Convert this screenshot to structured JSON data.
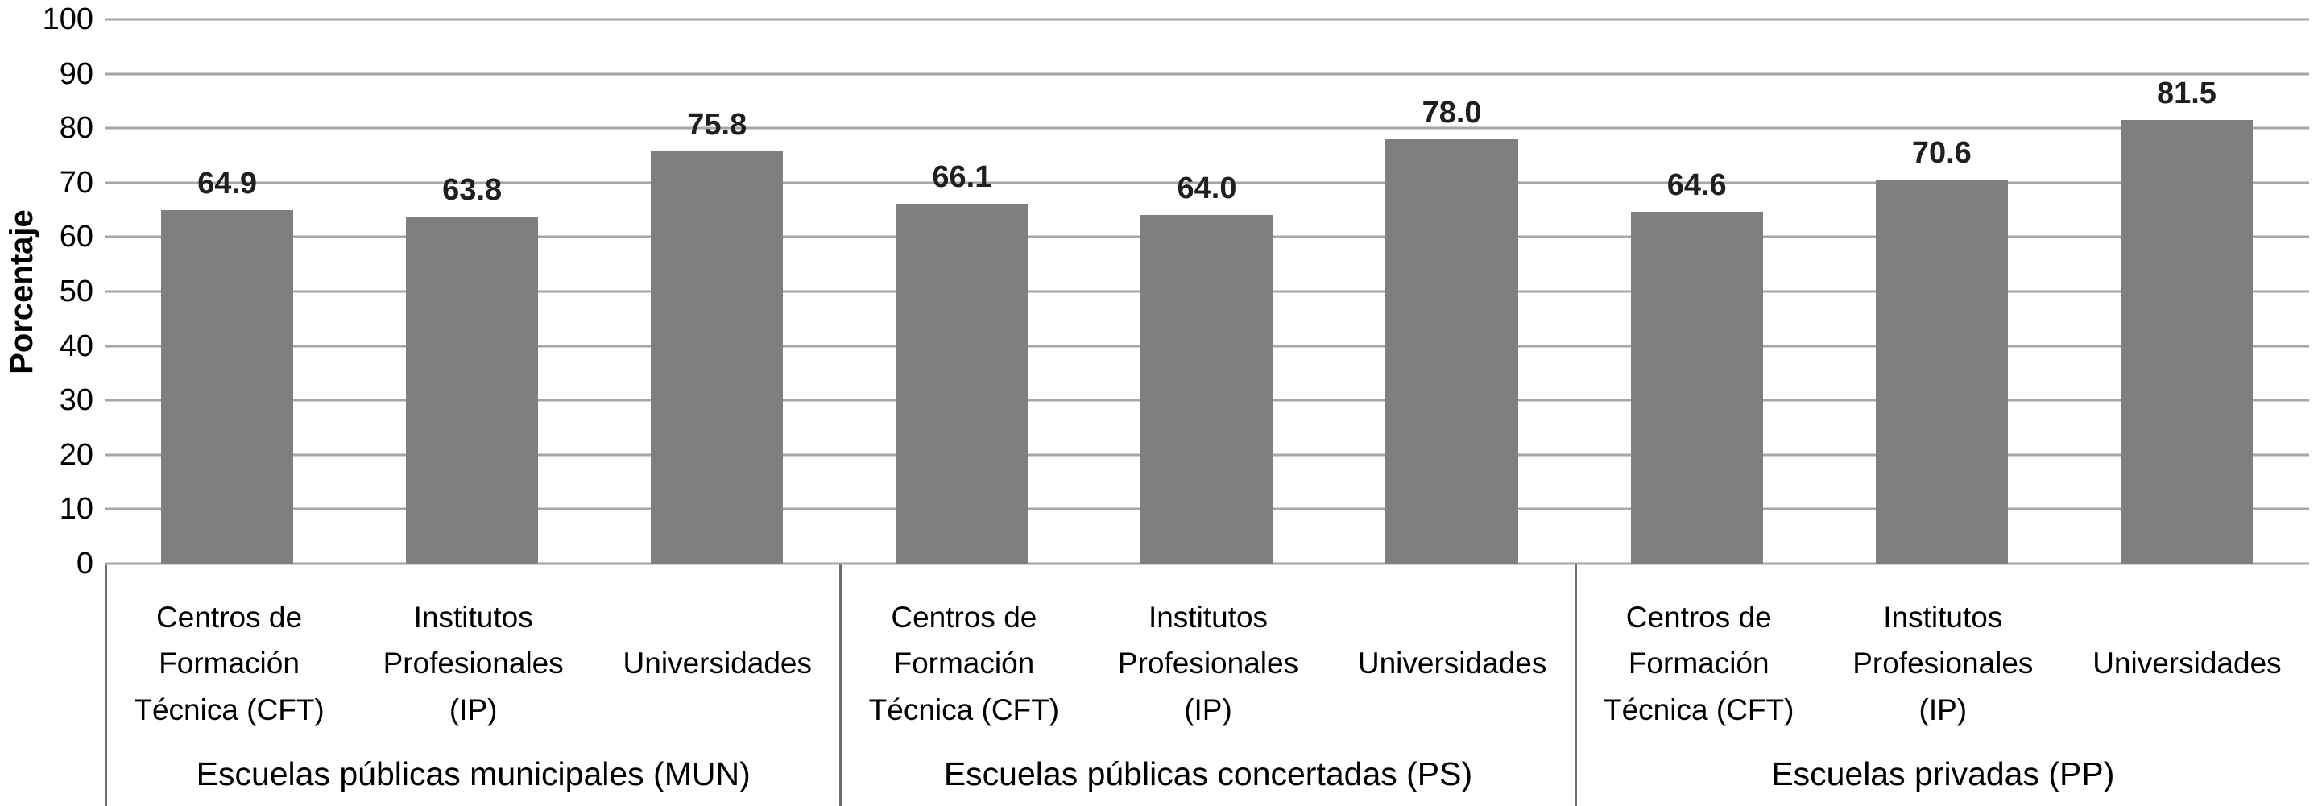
{
  "chart_data": {
    "type": "bar",
    "title": "",
    "ylabel": "Porcentaje",
    "ylim": [
      0,
      100
    ],
    "ytick_interval": 10,
    "ytick_labels": [
      "0",
      "10",
      "20",
      "30",
      "40",
      "50",
      "60",
      "70",
      "80",
      "90",
      "100"
    ],
    "grid": "horizontal",
    "legend": "none",
    "bar_color": "#7f7f7f",
    "groups": [
      {
        "label": "Escuelas públicas municipales (MUN)",
        "bars": [
          {
            "category_lines": [
              "Centros de",
              "Formación",
              "Técnica (CFT)"
            ],
            "value": 64.9,
            "display": "64.9"
          },
          {
            "category_lines": [
              "Institutos",
              "Profesionales",
              "(IP)"
            ],
            "value": 63.8,
            "display": "63.8"
          },
          {
            "category_lines": [
              "Universidades"
            ],
            "value": 75.8,
            "display": "75.8"
          }
        ]
      },
      {
        "label": "Escuelas públicas concertadas (PS)",
        "bars": [
          {
            "category_lines": [
              "Centros de",
              "Formación",
              "Técnica (CFT)"
            ],
            "value": 66.1,
            "display": "66.1"
          },
          {
            "category_lines": [
              "Institutos",
              "Profesionales",
              "(IP)"
            ],
            "value": 64.0,
            "display": "64.0"
          },
          {
            "category_lines": [
              "Universidades"
            ],
            "value": 78.0,
            "display": "78.0"
          }
        ]
      },
      {
        "label": "Escuelas privadas (PP)",
        "bars": [
          {
            "category_lines": [
              "Centros de",
              "Formación",
              "Técnica (CFT)"
            ],
            "value": 64.6,
            "display": "64.6"
          },
          {
            "category_lines": [
              "Institutos",
              "Profesionales",
              "(IP)"
            ],
            "value": 70.6,
            "display": "70.6"
          },
          {
            "category_lines": [
              "Universidades"
            ],
            "value": 81.5,
            "display": "81.5"
          }
        ]
      }
    ]
  }
}
